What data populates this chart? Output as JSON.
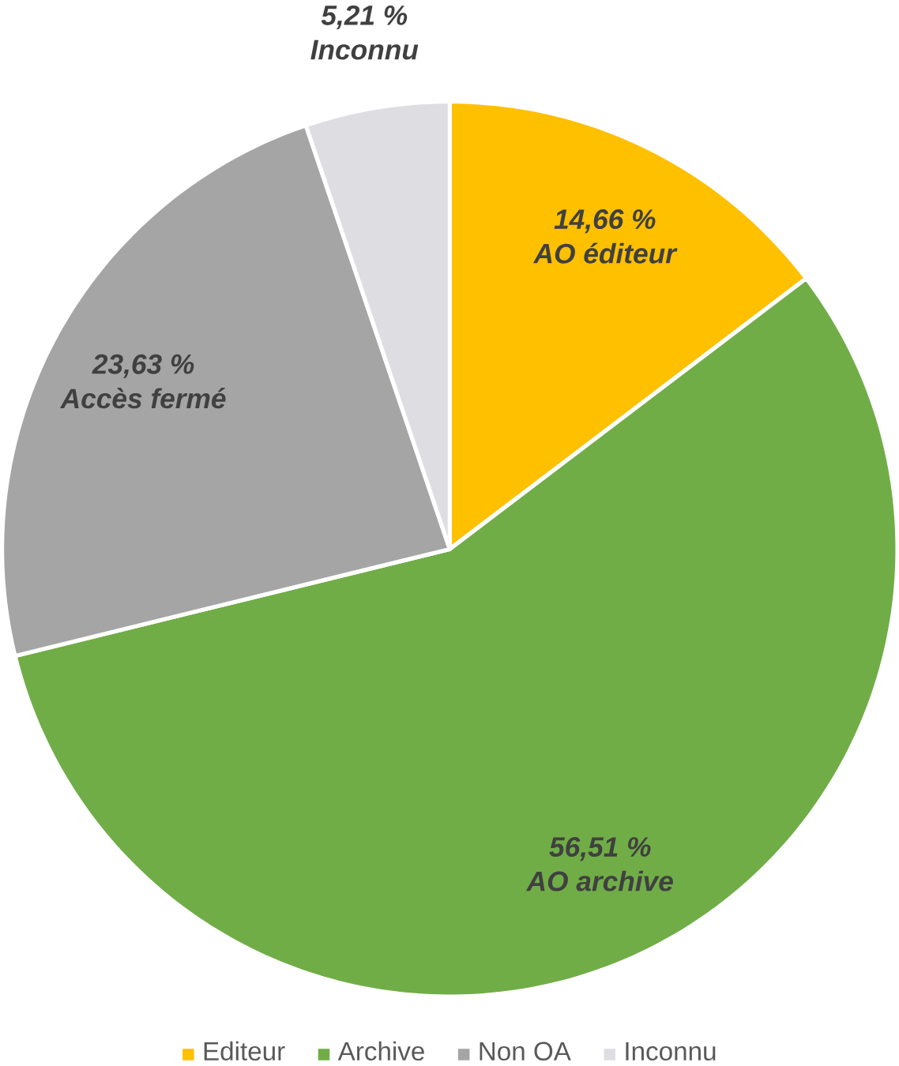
{
  "chart_data": {
    "type": "pie",
    "categories": [
      "Editeur",
      "Archive",
      "Non OA",
      "Inconnu"
    ],
    "values": [
      14.66,
      56.51,
      23.63,
      5.21
    ],
    "colors": [
      "#ffc000",
      "#70ad47",
      "#a5a5a5",
      "#dedee2"
    ],
    "value_labels": [
      "14,66 %",
      "56,51 %",
      "23,63 %",
      "5,21 %"
    ],
    "annotations": [
      {
        "text": "AO éditeur",
        "x": "Editeur"
      },
      {
        "text": "AO archive",
        "x": "Archive"
      },
      {
        "text": "Accès fermé",
        "x": "Non OA"
      },
      {
        "text": "Inconnu",
        "x": "Inconnu"
      }
    ],
    "legend": "bottom"
  }
}
